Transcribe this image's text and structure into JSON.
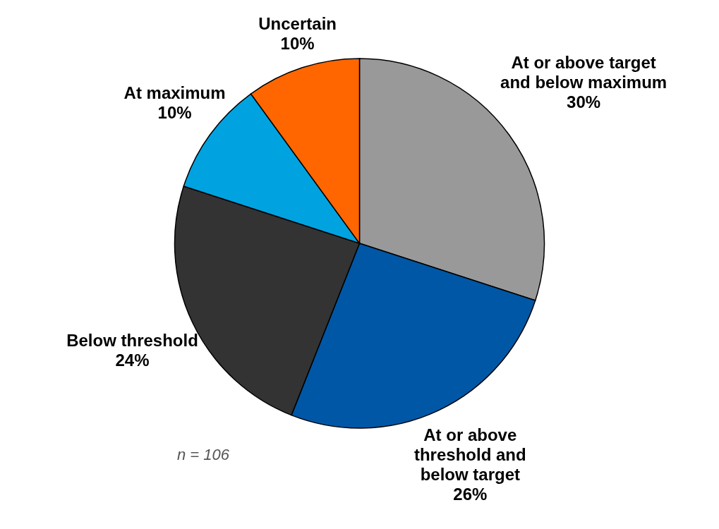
{
  "chart_data": {
    "type": "pie",
    "categories": [
      "At or above target and below maximum",
      "At or above threshold and below target",
      "Below threshold",
      "At maximum",
      "Uncertain"
    ],
    "values": [
      30,
      26,
      24,
      10,
      10
    ],
    "value_labels": [
      "30%",
      "26%",
      "24%",
      "10%",
      "10%"
    ],
    "colors": [
      "#999999",
      "#0057a6",
      "#333333",
      "#00a3e0",
      "#ff6600"
    ],
    "annotations": [
      "n = 106"
    ],
    "legend": false
  }
}
